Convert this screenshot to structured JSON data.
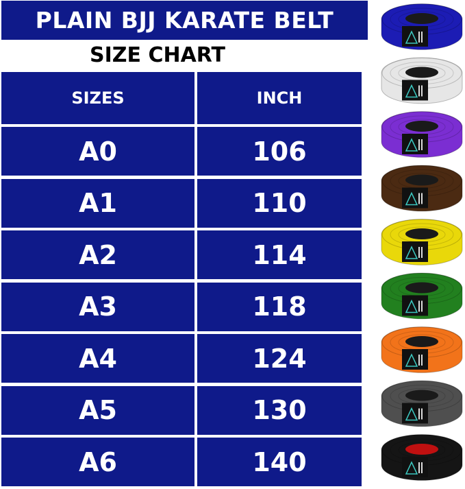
{
  "title": "PLAIN BJJ KARATE BELT",
  "subtitle": "SIZE CHART",
  "table": {
    "headers": [
      "SIZES",
      "INCH"
    ],
    "rows": [
      [
        "A0",
        "106"
      ],
      [
        "A1",
        "110"
      ],
      [
        "A2",
        "114"
      ],
      [
        "A3",
        "118"
      ],
      [
        "A4",
        "124"
      ],
      [
        "A5",
        "130"
      ],
      [
        "A6",
        "140"
      ]
    ]
  },
  "belts": [
    {
      "color": "blue",
      "hex": "#1c1cb4",
      "center": "#1a1a1a"
    },
    {
      "color": "white",
      "hex": "#e6e6e6",
      "center": "#1a1a1a"
    },
    {
      "color": "purple",
      "hex": "#7b2ed2",
      "center": "#1a1a1a"
    },
    {
      "color": "brown",
      "hex": "#4b2a12",
      "center": "#1a1a1a"
    },
    {
      "color": "yellow",
      "hex": "#e9d80a",
      "center": "#1a1a1a"
    },
    {
      "color": "green",
      "hex": "#22801f",
      "center": "#1a1a1a"
    },
    {
      "color": "orange",
      "hex": "#f2731a",
      "center": "#1a1a1a"
    },
    {
      "color": "gray",
      "hex": "#4f4f4f",
      "center": "#1a1a1a"
    },
    {
      "color": "black",
      "hex": "#151515",
      "center": "#c01010"
    }
  ],
  "accent": "#0f1a8a"
}
